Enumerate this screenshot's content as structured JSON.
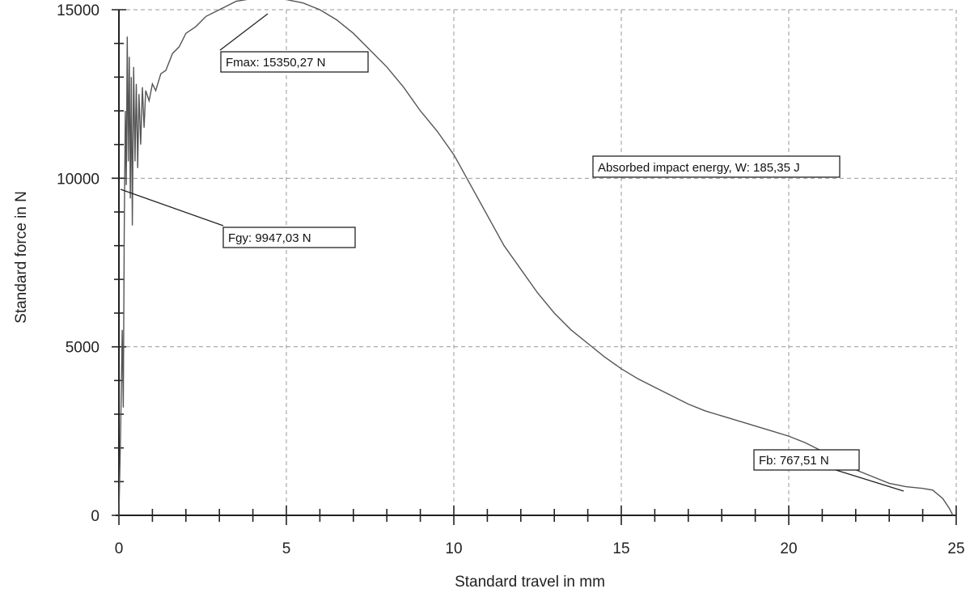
{
  "chart_data": {
    "type": "line",
    "xlabel": "Standard travel in mm",
    "ylabel": "Standard force in N",
    "xlim": [
      0,
      25
    ],
    "ylim": [
      0,
      15000
    ],
    "xticks": [
      0,
      5,
      10,
      15,
      20,
      25
    ],
    "yticks": [
      0,
      5000,
      10000,
      15000
    ],
    "x_minor_step": 1,
    "y_minor_step": 1000,
    "grid": true,
    "series": [
      {
        "x": [
          0,
          0.05,
          0.1,
          0.13,
          0.16,
          0.19,
          0.22,
          0.25,
          0.28,
          0.31,
          0.34,
          0.37,
          0.4,
          0.44,
          0.48,
          0.52,
          0.56,
          0.6,
          0.65,
          0.7,
          0.75,
          0.8,
          0.9,
          1.0,
          1.1,
          1.25,
          1.4,
          1.6,
          1.8,
          2.0,
          2.3,
          2.6,
          3.0,
          3.5,
          4.0,
          4.5,
          5.0,
          5.5,
          6.0,
          6.5,
          7.0,
          7.5,
          8.0,
          8.5,
          9.0,
          9.5,
          10.0,
          10.5,
          11.0,
          11.5,
          12.0,
          12.5,
          13.0,
          13.5,
          14.0,
          14.5,
          15.0,
          15.5,
          16.0,
          16.5,
          17.0,
          17.5,
          18.0,
          18.5,
          19.0,
          19.5,
          20.0,
          20.5,
          21.0,
          21.5,
          22.0,
          22.5,
          23.0,
          23.5,
          24.0,
          24.3,
          24.6,
          24.8,
          24.9
        ],
        "y": [
          0,
          2500,
          5500,
          3200,
          8500,
          12000,
          9800,
          14200,
          10500,
          13600,
          9400,
          13000,
          8600,
          13300,
          10500,
          12800,
          10300,
          12500,
          11000,
          12700,
          11500,
          12600,
          12300,
          12800,
          12600,
          13100,
          13200,
          13700,
          13900,
          14300,
          14500,
          14800,
          15000,
          15250,
          15330,
          15350,
          15300,
          15200,
          15000,
          14700,
          14300,
          13800,
          13300,
          12700,
          12000,
          11400,
          10700,
          9800,
          8900,
          8000,
          7300,
          6600,
          6000,
          5500,
          5100,
          4700,
          4350,
          4050,
          3800,
          3550,
          3300,
          3100,
          2950,
          2800,
          2650,
          2500,
          2350,
          2150,
          1900,
          1650,
          1350,
          1150,
          950,
          850,
          800,
          750,
          500,
          200,
          0
        ]
      }
    ],
    "annotations": [
      {
        "label": "Fmax: 15350,27 N",
        "point": [
          4.5,
          15350
        ],
        "value": 15350.27
      },
      {
        "label": "Fgy: 9947,03 N",
        "point": [
          0.15,
          9947
        ],
        "value": 9947.03
      },
      {
        "label": "Absorbed impact energy, W: 185,35 J"
      },
      {
        "label": "Fb: 767,51 N",
        "point": [
          23.5,
          767
        ],
        "value": 767.51
      }
    ]
  }
}
